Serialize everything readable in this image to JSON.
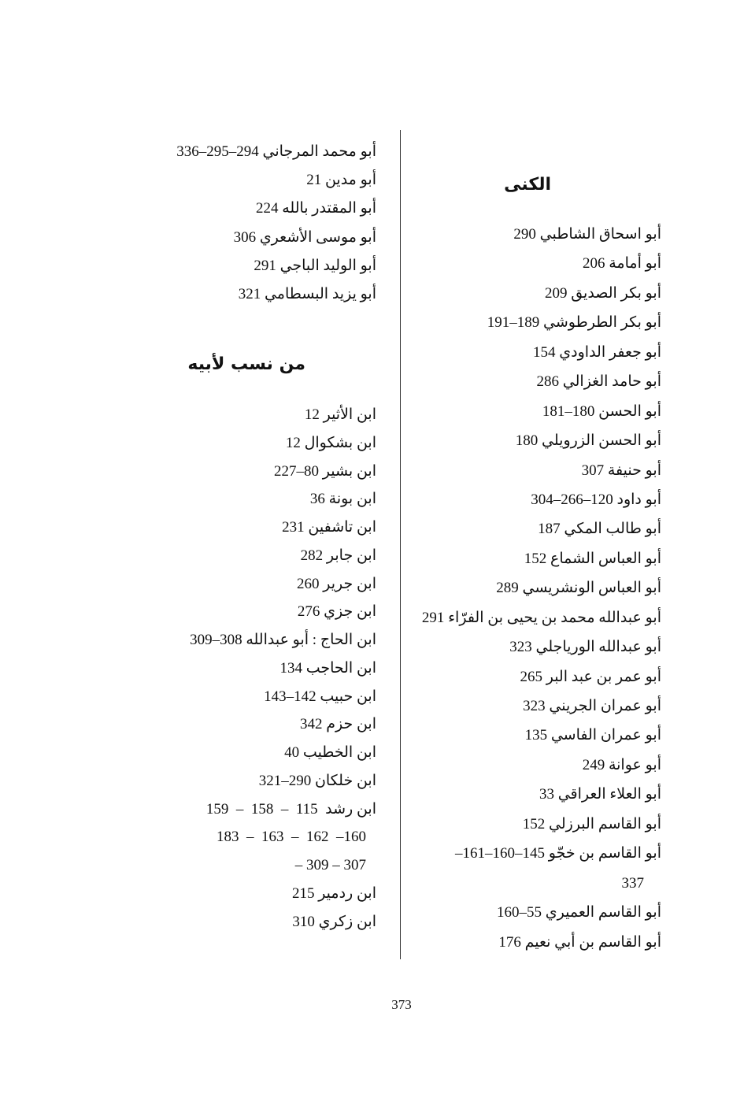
{
  "right_column": {
    "title": "الكنى",
    "entries": [
      "أبو اسحاق الشاطبي 290",
      "أبو أمامة 206",
      "أبو بكر الصديق 209",
      "أبو بكر الطرطوشي 189–191",
      "أبو جعفر الداودي 154",
      "أبو حامد الغزالي 286",
      "أبو الحسن 180–181",
      "أبو الحسن الزرويلي 180",
      "أبو حنيفة 307",
      "أبو داود 120–266–304",
      "أبو طالب المكي 187",
      "أبو العباس الشماع 152",
      "أبو العباس الونشريسي 289",
      "أبو عبدالله محمد بن يحيى بن الفرّاء 291",
      "أبو عبدالله الورياجلي 323",
      "أبو عمر بن عبد البر 265",
      "أبو عمران الجريني 323",
      "أبو عمران الفاسي 135",
      "أبو عوانة 249",
      "أبو العلاء العراقي 33",
      "أبو القاسم البرزلي 152",
      "أبو القاسم بن خجّو 145–160–161–",
      "337",
      "أبو القاسم العميري 55–160",
      "أبو القاسم بن أبي نعيم 176"
    ]
  },
  "left_column": {
    "top_entries": [
      "أبو محمد المرجاني 294–295–336",
      "أبو مدين 21",
      "أبو المقتدر بالله 224",
      "أبو موسى الأشعري 306",
      "أبو الوليد الباجي 291",
      "أبو يزيد البسطامي 321"
    ],
    "title": "من نسب لأبيه",
    "entries": [
      "ابن الأثير 12",
      "ابن بشكوال 12",
      "ابن بشير 80–227",
      "ابن بونة 36",
      "ابن تاشفين 231",
      "ابن جابر 282",
      "ابن جرير 260",
      "ابن جزي 276",
      "ابن الحاج : أبو عبدالله 308–309",
      "ابن الحاجب 134",
      "ابن حبيب 142–143",
      "ابن حزم 342",
      "ابن الخطيب 40",
      "ابن خلكان 290–321",
      "ابن رشد  115  –  158  –  159",
      "183  –  163  –  162  –160",
      "– 309 – 307",
      "ابن ردمير 215",
      "ابن زكري 310"
    ]
  },
  "page_number": "373"
}
